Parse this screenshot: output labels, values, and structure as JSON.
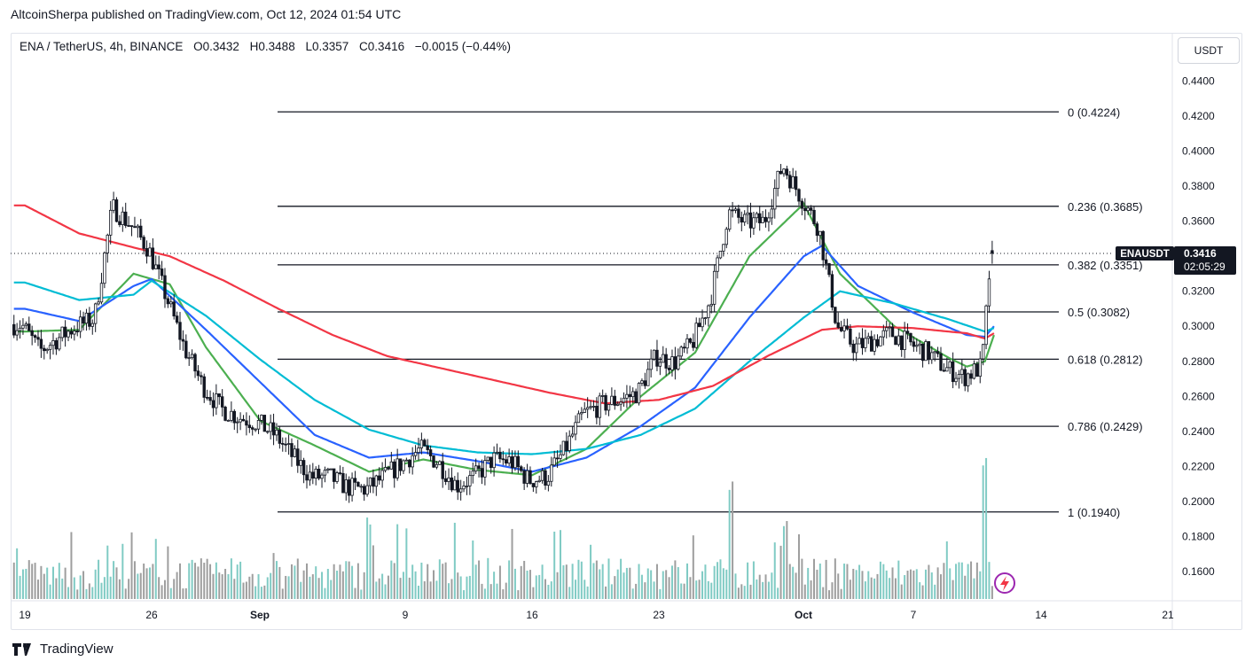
{
  "header": {
    "text": "AltcoinSherpa published on TradingView.com, Oct 12, 2024 01:54 UTC"
  },
  "legend": {
    "symbol": "ENA / TetherUS, 4h, BINANCE",
    "open": "O0.3432",
    "high": "H0.3488",
    "low": "L0.3357",
    "close": "C0.3416",
    "change": "−0.0015 (−0.44%)"
  },
  "unit_button": "USDT",
  "price_badge": {
    "symbol": "ENAUSDT",
    "price": "0.3416",
    "countdown": "02:05:29"
  },
  "footer": {
    "brand": "TradingView",
    "logo": "tradingview-logo"
  },
  "colors": {
    "up": "#26a69a",
    "down": "#131722",
    "ema_green": "#4caf50",
    "ema_blue": "#2962ff",
    "ema_cyan": "#00bcd4",
    "ema_red": "#f23645",
    "vol_up": "#80cbc4",
    "vol_down": "#9e9e9e"
  },
  "chart_data": {
    "type": "candlestick",
    "pair": "ENA / TetherUS",
    "timeframe": "4h",
    "exchange": "BINANCE",
    "y_axis": {
      "ticks": [
        "0.4400",
        "0.4200",
        "0.4000",
        "0.3800",
        "0.3600",
        "0.3400",
        "0.3200",
        "0.3000",
        "0.2800",
        "0.2600",
        "0.2400",
        "0.2200",
        "0.2000",
        "0.1800",
        "0.1600"
      ],
      "range": [
        0.15,
        0.455
      ]
    },
    "x_axis": {
      "ticks": [
        "19",
        "26",
        "Sep",
        "9",
        "16",
        "23",
        "Oct",
        "7",
        "14",
        "21"
      ]
    },
    "fib_levels": [
      {
        "ratio": "0",
        "price": 0.4224,
        "label": "0 (0.4224)"
      },
      {
        "ratio": "0.236",
        "price": 0.3685,
        "label": "0.236 (0.3685)"
      },
      {
        "ratio": "0.382",
        "price": 0.3351,
        "label": "0.382 (0.3351)"
      },
      {
        "ratio": "0.5",
        "price": 0.3082,
        "label": "0.5 (0.3082)"
      },
      {
        "ratio": "0.618",
        "price": 0.2812,
        "label": "0.618 (0.2812)"
      },
      {
        "ratio": "0.786",
        "price": 0.2429,
        "label": "0.786 (0.2429)"
      },
      {
        "ratio": "1",
        "price": 0.194,
        "label": "1 (0.1940)"
      }
    ],
    "last_price": 0.3416,
    "price_anchors": [
      [
        "Aug 19",
        0.301
      ],
      [
        "Aug 20",
        0.286
      ],
      [
        "Aug 21",
        0.293
      ],
      [
        "Aug 22",
        0.3
      ],
      [
        "Aug 23",
        0.304
      ],
      [
        "Aug 24",
        0.368
      ],
      [
        "Aug 25",
        0.358
      ],
      [
        "Aug 26",
        0.344
      ],
      [
        "Aug 27",
        0.316
      ],
      [
        "Aug 28",
        0.287
      ],
      [
        "Aug 29",
        0.266
      ],
      [
        "Aug 30",
        0.253
      ],
      [
        "Aug 31",
        0.248
      ],
      [
        "Sep 1",
        0.245
      ],
      [
        "Sep 2",
        0.238
      ],
      [
        "Sep 3",
        0.225
      ],
      [
        "Sep 4",
        0.214
      ],
      [
        "Sep 5",
        0.214
      ],
      [
        "Sep 6",
        0.208
      ],
      [
        "Sep 7",
        0.207
      ],
      [
        "Sep 8",
        0.214
      ],
      [
        "Sep 9",
        0.222
      ],
      [
        "Sep 10",
        0.23
      ],
      [
        "Sep 11",
        0.222
      ],
      [
        "Sep 12",
        0.209
      ],
      [
        "Sep 13",
        0.214
      ],
      [
        "Sep 14",
        0.224
      ],
      [
        "Sep 15",
        0.223
      ],
      [
        "Sep 16",
        0.212
      ],
      [
        "Sep 17",
        0.214
      ],
      [
        "Sep 18",
        0.23
      ],
      [
        "Sep 19",
        0.25
      ],
      [
        "Sep 20",
        0.255
      ],
      [
        "Sep 21",
        0.258
      ],
      [
        "Sep 22",
        0.262
      ],
      [
        "Sep 23",
        0.283
      ],
      [
        "Sep 24",
        0.279
      ],
      [
        "Sep 25",
        0.29
      ],
      [
        "Sep 26",
        0.315
      ],
      [
        "Sep 27",
        0.365
      ],
      [
        "Sep 28",
        0.359
      ],
      [
        "Sep 29",
        0.36
      ],
      [
        "Sep 30",
        0.392
      ],
      [
        "Oct 1",
        0.374
      ],
      [
        "Oct 2",
        0.356
      ],
      [
        "Oct 3",
        0.3
      ],
      [
        "Oct 4",
        0.288
      ],
      [
        "Oct 5",
        0.292
      ],
      [
        "Oct 6",
        0.296
      ],
      [
        "Oct 7",
        0.29
      ],
      [
        "Oct 8",
        0.285
      ],
      [
        "Oct 9",
        0.276
      ],
      [
        "Oct 10",
        0.271
      ],
      [
        "Oct 11",
        0.277
      ],
      [
        "Oct 11 12:00",
        0.3416
      ]
    ],
    "moving_averages": [
      {
        "color": "green",
        "anchors": [
          [
            "Aug 19",
            0.297
          ],
          [
            "Aug 22",
            0.298
          ],
          [
            "Aug 25",
            0.33
          ],
          [
            "Aug 27",
            0.324
          ],
          [
            "Aug 29",
            0.288
          ],
          [
            "Sep 1",
            0.246
          ],
          [
            "Sep 4",
            0.232
          ],
          [
            "Sep 7",
            0.217
          ],
          [
            "Sep 10",
            0.224
          ],
          [
            "Sep 13",
            0.218
          ],
          [
            "Sep 16",
            0.215
          ],
          [
            "Sep 19",
            0.23
          ],
          [
            "Sep 22",
            0.26
          ],
          [
            "Sep 25",
            0.285
          ],
          [
            "Sep 28",
            0.34
          ],
          [
            "Oct 1",
            0.37
          ],
          [
            "Oct 3",
            0.33
          ],
          [
            "Oct 6",
            0.3
          ],
          [
            "Oct 9",
            0.282
          ],
          [
            "Oct 10",
            0.277
          ],
          [
            "Oct 11",
            0.28
          ],
          [
            "Oct 11 12:00",
            0.295
          ]
        ]
      },
      {
        "color": "blue",
        "anchors": [
          [
            "Aug 19",
            0.31
          ],
          [
            "Aug 22",
            0.303
          ],
          [
            "Aug 25",
            0.323
          ],
          [
            "Aug 26",
            0.327
          ],
          [
            "Aug 29",
            0.298
          ],
          [
            "Sep 1",
            0.268
          ],
          [
            "Sep 4",
            0.238
          ],
          [
            "Sep 7",
            0.225
          ],
          [
            "Sep 10",
            0.228
          ],
          [
            "Sep 13",
            0.223
          ],
          [
            "Sep 16",
            0.217
          ],
          [
            "Sep 19",
            0.225
          ],
          [
            "Sep 22",
            0.243
          ],
          [
            "Sep 25",
            0.265
          ],
          [
            "Sep 28",
            0.305
          ],
          [
            "Oct 1",
            0.34
          ],
          [
            "Oct 2",
            0.346
          ],
          [
            "Oct 4",
            0.323
          ],
          [
            "Oct 7",
            0.308
          ],
          [
            "Oct 10",
            0.295
          ],
          [
            "Oct 11",
            0.294
          ],
          [
            "Oct 11 12:00",
            0.3
          ]
        ]
      },
      {
        "color": "cyan",
        "anchors": [
          [
            "Aug 19",
            0.325
          ],
          [
            "Aug 22",
            0.315
          ],
          [
            "Aug 25",
            0.318
          ],
          [
            "Aug 26",
            0.326
          ],
          [
            "Aug 29",
            0.306
          ],
          [
            "Sep 1",
            0.281
          ],
          [
            "Sep 4",
            0.258
          ],
          [
            "Sep 7",
            0.241
          ],
          [
            "Sep 10",
            0.232
          ],
          [
            "Sep 13",
            0.228
          ],
          [
            "Sep 16",
            0.227
          ],
          [
            "Sep 19",
            0.23
          ],
          [
            "Sep 22",
            0.238
          ],
          [
            "Sep 25",
            0.253
          ],
          [
            "Sep 28",
            0.28
          ],
          [
            "Oct 1",
            0.305
          ],
          [
            "Oct 3",
            0.32
          ],
          [
            "Oct 6",
            0.313
          ],
          [
            "Oct 9",
            0.304
          ],
          [
            "Oct 11",
            0.297
          ],
          [
            "Oct 11 12:00",
            0.299
          ]
        ]
      },
      {
        "color": "red",
        "anchors": [
          [
            "Aug 19",
            0.369
          ],
          [
            "Aug 22",
            0.353
          ],
          [
            "Aug 25",
            0.345
          ],
          [
            "Aug 27",
            0.34
          ],
          [
            "Aug 30",
            0.326
          ],
          [
            "Sep 2",
            0.31
          ],
          [
            "Sep 5",
            0.295
          ],
          [
            "Sep 8",
            0.283
          ],
          [
            "Sep 11",
            0.276
          ],
          [
            "Sep 14",
            0.269
          ],
          [
            "Sep 17",
            0.262
          ],
          [
            "Sep 20",
            0.256
          ],
          [
            "Sep 23",
            0.258
          ],
          [
            "Sep 26",
            0.266
          ],
          [
            "Sep 29",
            0.283
          ],
          [
            "Oct 2",
            0.298
          ],
          [
            "Oct 4",
            0.3
          ],
          [
            "Oct 7",
            0.299
          ],
          [
            "Oct 10",
            0.296
          ],
          [
            "Oct 11",
            0.293
          ],
          [
            "Oct 11 12:00",
            0.296
          ]
        ]
      }
    ],
    "volume": {
      "note": "relative volume bars",
      "spikes": [
        [
          "Sep 27",
          1.0
        ],
        [
          "Oct 11",
          1.0
        ],
        [
          "Sep 30",
          0.55
        ],
        [
          "Sep 7",
          0.58
        ]
      ]
    }
  }
}
